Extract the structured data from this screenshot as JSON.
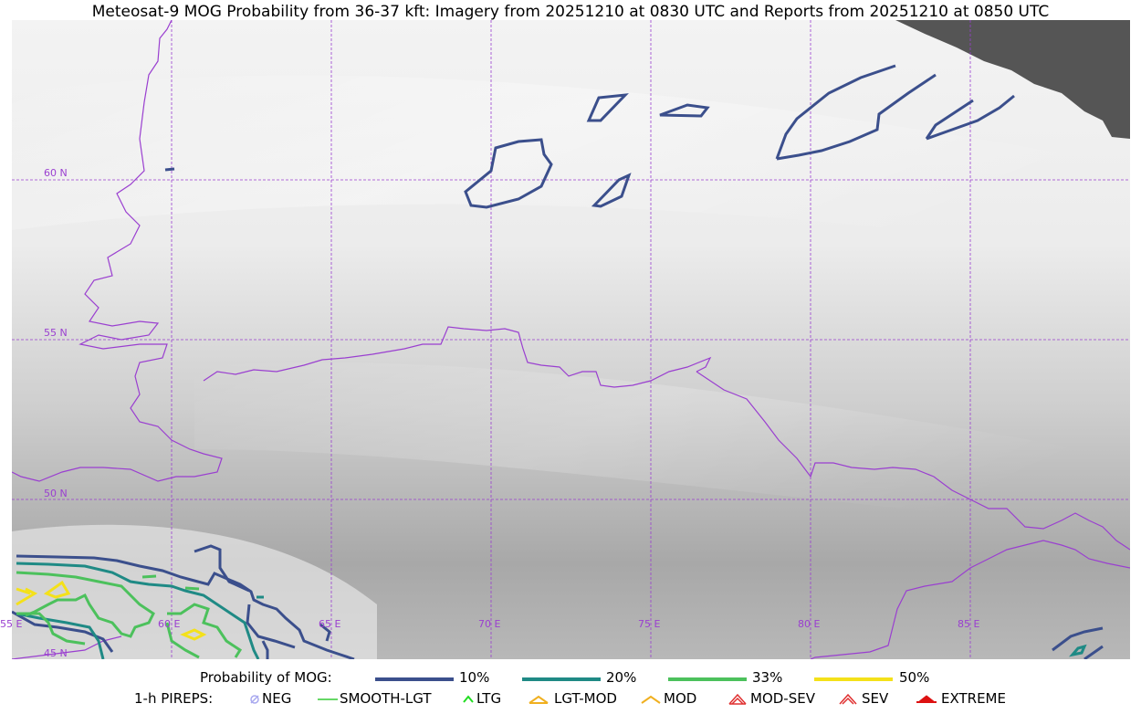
{
  "title": "Meteosat-9 MOG Probability from 36-37 kft: Imagery from 20251210 at 0830 UTC and Reports from 20251210 at 0850 UTC",
  "map": {
    "lat_labels": [
      "60 N",
      "55 N",
      "50 N",
      "45 N"
    ],
    "lon_labels": [
      "55 E",
      "60 E",
      "65 E",
      "70 E",
      "75 E",
      "80 E",
      "85 E"
    ],
    "colors": {
      "grid": "#9a3fd0",
      "borders": "#9a3fd0",
      "no_data": "#555555"
    }
  },
  "legend": {
    "probability_title": "Probability of MOG:",
    "probability_levels": [
      {
        "label": "10%",
        "color": "#3b4f8c"
      },
      {
        "label": "20%",
        "color": "#1f8a85"
      },
      {
        "label": "33%",
        "color": "#4cc15c"
      },
      {
        "label": "50%",
        "color": "#f4e11a"
      }
    ],
    "pireps_title": "1-h PIREPS:",
    "pireps": [
      {
        "label": "NEG",
        "icon": "neg-icon",
        "color": "#a9a9ef"
      },
      {
        "label": "SMOOTH-LGT",
        "icon": "smooth-lgt-icon",
        "color": "#33cc33"
      },
      {
        "label": "LTG",
        "icon": "ltg-icon",
        "color": "#22dd22"
      },
      {
        "label": "LGT-MOD",
        "icon": "lgt-mod-icon",
        "color": "#f0b020"
      },
      {
        "label": "MOD",
        "icon": "mod-icon",
        "color": "#f0b020"
      },
      {
        "label": "MOD-SEV",
        "icon": "mod-sev-icon",
        "color": "#e03030"
      },
      {
        "label": "SEV",
        "icon": "sev-icon",
        "color": "#e03030"
      },
      {
        "label": "EXTREME",
        "icon": "extreme-icon",
        "color": "#dd1111"
      }
    ]
  }
}
